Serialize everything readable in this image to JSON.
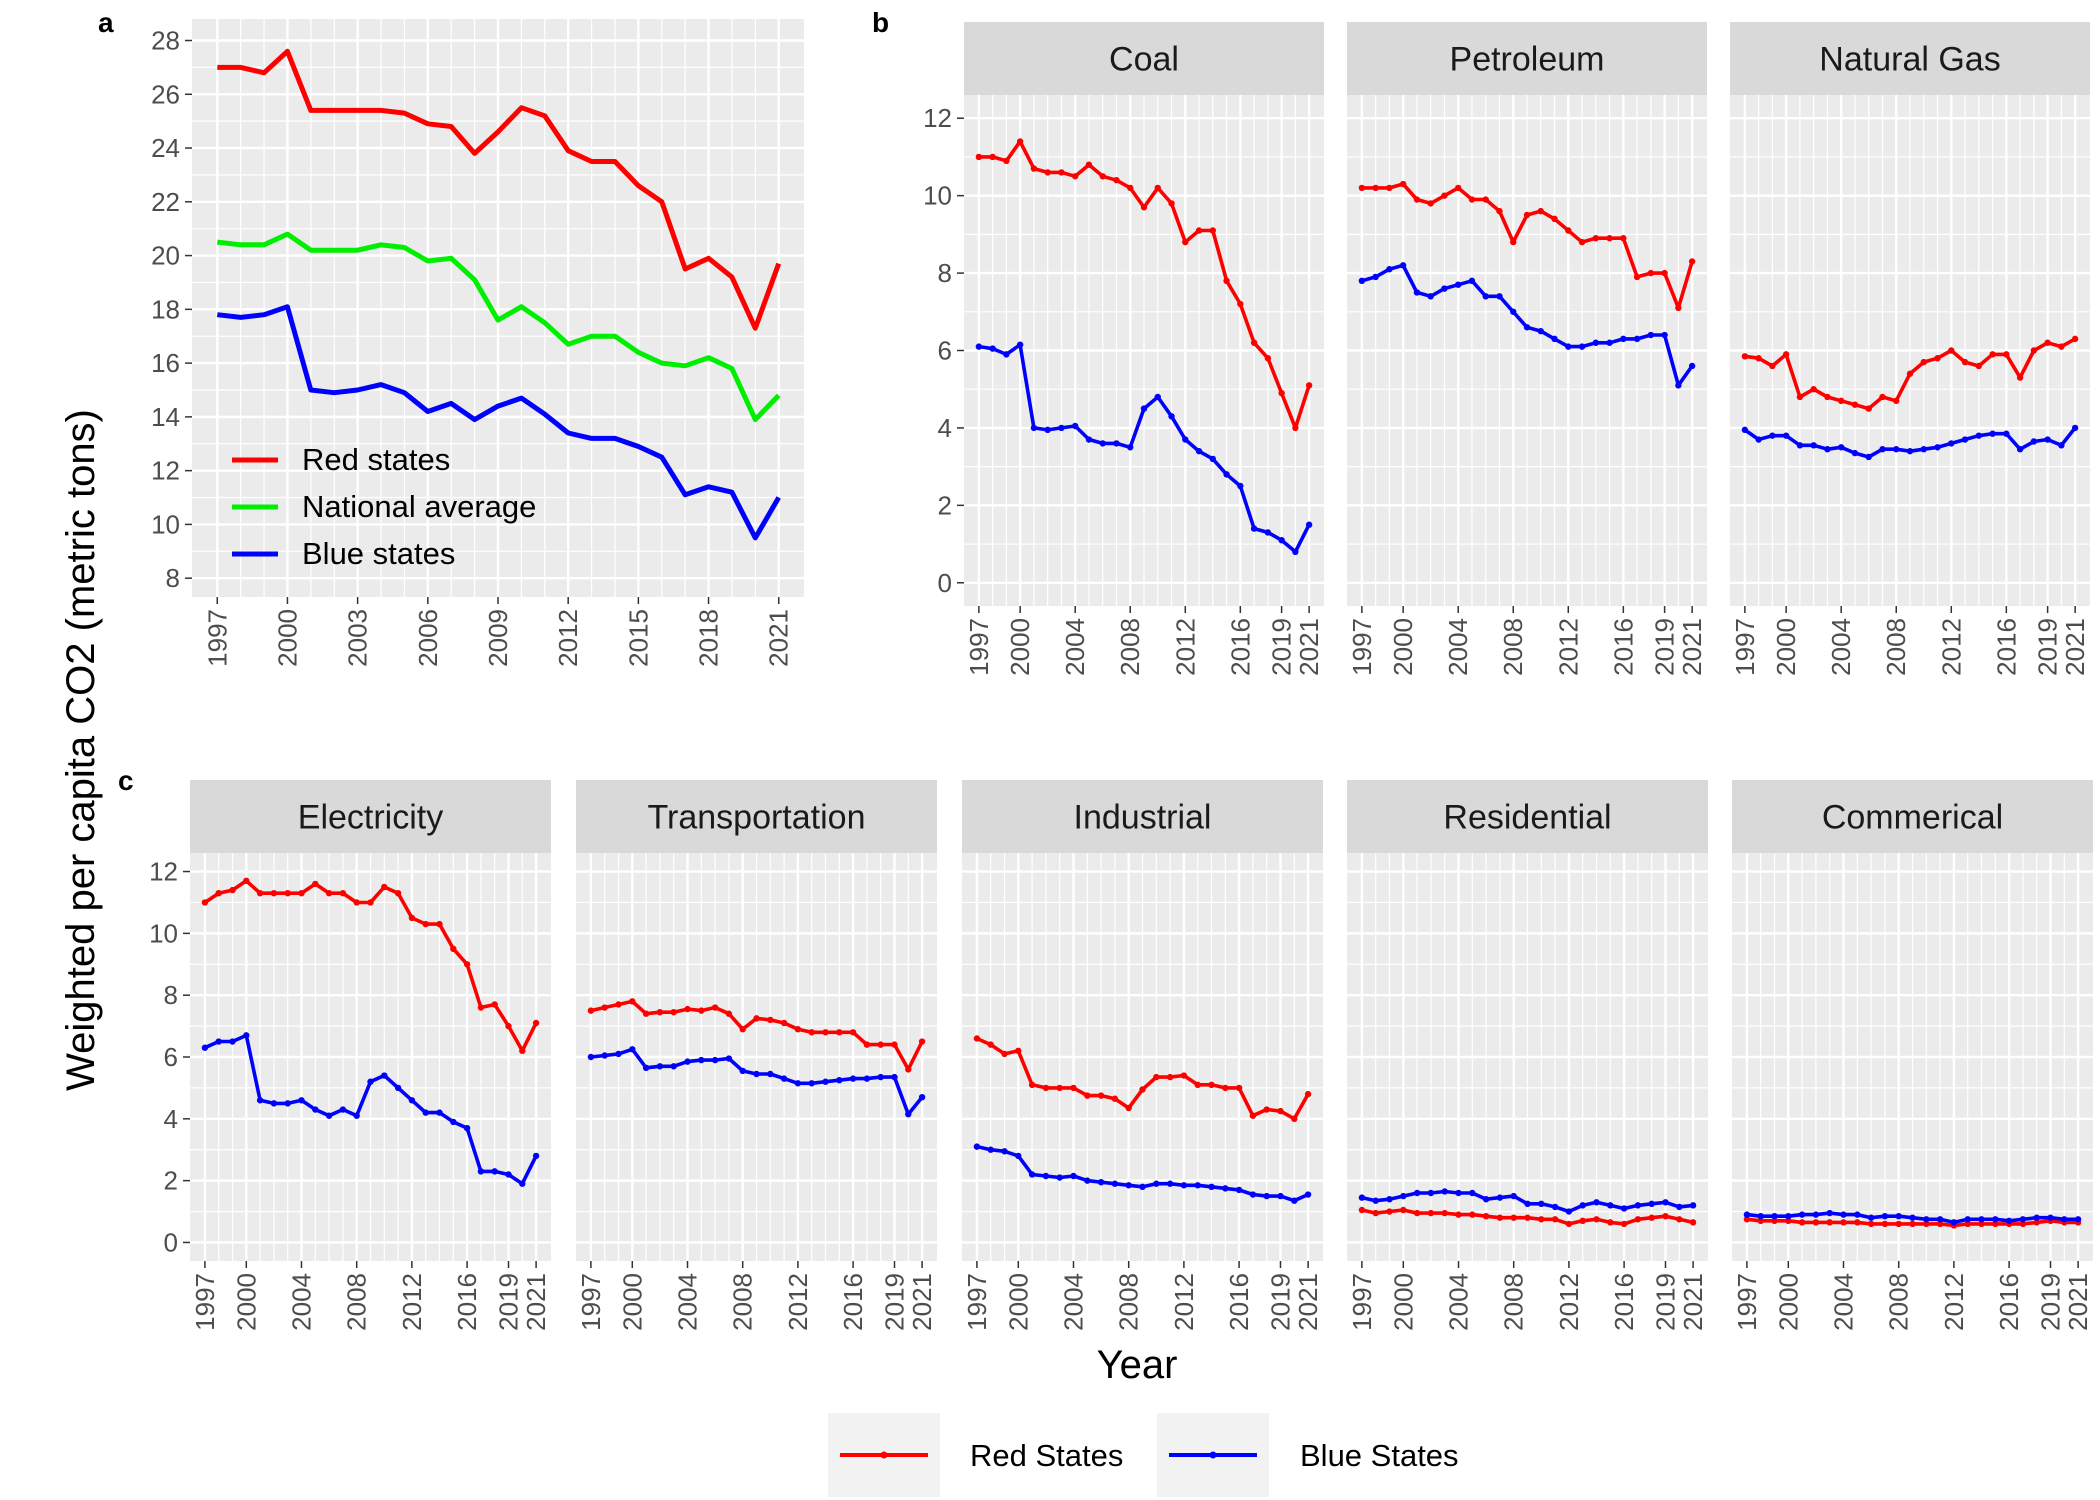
{
  "axis_titles": {
    "y": "Weighted per capita CO2 (metric tons)",
    "x": "Year"
  },
  "panel_letters": {
    "a": "a",
    "b": "b",
    "c": "c"
  },
  "legend": {
    "panel_a": [
      {
        "label": "Red states",
        "color": "#ff0000"
      },
      {
        "label": "National average",
        "color": "#00ee00"
      },
      {
        "label": "Blue states",
        "color": "#0000ff"
      }
    ],
    "bottom": [
      {
        "label": "Red States",
        "color": "#ff0000"
      },
      {
        "label": "Blue States",
        "color": "#0000ff"
      }
    ]
  },
  "chart_data": [
    {
      "panel": "a",
      "type": "line",
      "x": [
        1997,
        1998,
        1999,
        2000,
        2001,
        2002,
        2003,
        2004,
        2005,
        2006,
        2007,
        2008,
        2009,
        2010,
        2011,
        2012,
        2013,
        2014,
        2015,
        2016,
        2017,
        2018,
        2019,
        2020,
        2021
      ],
      "x_ticks": [
        1997,
        2000,
        2003,
        2006,
        2009,
        2012,
        2015,
        2018,
        2021
      ],
      "y_ticks": [
        8,
        10,
        12,
        14,
        16,
        18,
        20,
        22,
        24,
        26,
        28
      ],
      "ylim": [
        7.3,
        28.8
      ],
      "grid": true,
      "legend_position": "bottom-left",
      "series": [
        {
          "name": "Red states",
          "color": "#ff0000",
          "values": [
            27.0,
            27.0,
            26.8,
            27.6,
            25.4,
            25.4,
            25.4,
            25.4,
            25.3,
            24.9,
            24.8,
            23.8,
            24.6,
            25.5,
            25.2,
            23.9,
            23.5,
            23.5,
            22.6,
            22.0,
            19.5,
            19.9,
            19.2,
            17.3,
            19.7
          ]
        },
        {
          "name": "National average",
          "color": "#00ee00",
          "values": [
            20.5,
            20.4,
            20.4,
            20.8,
            20.2,
            20.2,
            20.2,
            20.4,
            20.3,
            19.8,
            19.9,
            19.1,
            17.6,
            18.1,
            17.5,
            16.7,
            17.0,
            17.0,
            16.4,
            16.0,
            15.9,
            16.2,
            15.8,
            13.9,
            14.8
          ]
        },
        {
          "name": "Blue states",
          "color": "#0000ff",
          "values": [
            17.8,
            17.7,
            17.8,
            18.1,
            15.0,
            14.9,
            15.0,
            15.2,
            14.9,
            14.2,
            14.5,
            13.9,
            14.4,
            14.7,
            14.1,
            13.4,
            13.2,
            13.2,
            12.9,
            12.5,
            11.1,
            11.4,
            11.2,
            9.5,
            11.0
          ]
        }
      ]
    },
    {
      "panel": "b",
      "type": "line",
      "facets": [
        "Coal",
        "Petroleum",
        "Natural Gas"
      ],
      "x": [
        1997,
        1998,
        1999,
        2000,
        2001,
        2002,
        2003,
        2004,
        2005,
        2006,
        2007,
        2008,
        2009,
        2010,
        2011,
        2012,
        2013,
        2014,
        2015,
        2016,
        2017,
        2018,
        2019,
        2020,
        2021
      ],
      "x_ticks": [
        1997,
        2000,
        2004,
        2008,
        2012,
        2016,
        2019,
        2021
      ],
      "y_ticks": [
        0,
        2,
        4,
        6,
        8,
        10,
        12
      ],
      "ylim": [
        -0.6,
        12.6
      ],
      "grid": true,
      "series": [
        {
          "facet": "Coal",
          "name": "Red States",
          "color": "#ff0000",
          "values": [
            11.0,
            11.0,
            10.9,
            11.4,
            10.7,
            10.6,
            10.6,
            10.5,
            10.8,
            10.5,
            10.4,
            10.2,
            9.7,
            10.2,
            9.8,
            8.8,
            9.1,
            9.1,
            7.8,
            7.2,
            6.2,
            5.8,
            4.9,
            4.0,
            5.1
          ]
        },
        {
          "facet": "Coal",
          "name": "Blue States",
          "color": "#0000ff",
          "values": [
            6.1,
            6.05,
            5.9,
            6.15,
            4.0,
            3.95,
            4.0,
            4.05,
            3.7,
            3.6,
            3.6,
            3.5,
            4.5,
            4.8,
            4.3,
            3.7,
            3.4,
            3.2,
            2.8,
            2.5,
            1.4,
            1.3,
            1.1,
            0.8,
            1.5
          ]
        },
        {
          "facet": "Petroleum",
          "name": "Red States",
          "color": "#ff0000",
          "values": [
            10.2,
            10.2,
            10.2,
            10.3,
            9.9,
            9.8,
            10.0,
            10.2,
            9.9,
            9.9,
            9.6,
            8.8,
            9.5,
            9.6,
            9.4,
            9.1,
            8.8,
            8.9,
            8.9,
            8.9,
            7.9,
            8.0,
            8.0,
            7.1,
            8.3
          ]
        },
        {
          "facet": "Petroleum",
          "name": "Blue States",
          "color": "#0000ff",
          "values": [
            7.8,
            7.9,
            8.1,
            8.2,
            7.5,
            7.4,
            7.6,
            7.7,
            7.8,
            7.4,
            7.4,
            7.0,
            6.6,
            6.5,
            6.3,
            6.1,
            6.1,
            6.2,
            6.2,
            6.3,
            6.3,
            6.4,
            6.4,
            5.1,
            5.6
          ]
        },
        {
          "facet": "Natural Gas",
          "name": "Red States",
          "color": "#ff0000",
          "values": [
            5.85,
            5.8,
            5.6,
            5.9,
            4.8,
            5.0,
            4.8,
            4.7,
            4.6,
            4.5,
            4.8,
            4.7,
            5.4,
            5.7,
            5.8,
            6.0,
            5.7,
            5.6,
            5.9,
            5.9,
            5.3,
            6.0,
            6.2,
            6.1,
            6.3
          ]
        },
        {
          "facet": "Natural Gas",
          "name": "Blue States",
          "color": "#0000ff",
          "values": [
            3.95,
            3.7,
            3.8,
            3.8,
            3.55,
            3.55,
            3.45,
            3.5,
            3.35,
            3.25,
            3.45,
            3.45,
            3.4,
            3.45,
            3.5,
            3.6,
            3.7,
            3.8,
            3.85,
            3.85,
            3.45,
            3.65,
            3.7,
            3.55,
            4.0
          ]
        }
      ]
    },
    {
      "panel": "c",
      "type": "line",
      "facets": [
        "Electricity",
        "Transportation",
        "Industrial",
        "Residential",
        "Commerical"
      ],
      "x": [
        1997,
        1998,
        1999,
        2000,
        2001,
        2002,
        2003,
        2004,
        2005,
        2006,
        2007,
        2008,
        2009,
        2010,
        2011,
        2012,
        2013,
        2014,
        2015,
        2016,
        2017,
        2018,
        2019,
        2020,
        2021
      ],
      "x_ticks": [
        1997,
        2000,
        2004,
        2008,
        2012,
        2016,
        2019,
        2021
      ],
      "y_ticks": [
        0,
        2,
        4,
        6,
        8,
        10,
        12
      ],
      "ylim": [
        -0.6,
        12.6
      ],
      "grid": true,
      "series": [
        {
          "facet": "Electricity",
          "name": "Red States",
          "color": "#ff0000",
          "values": [
            11.0,
            11.3,
            11.4,
            11.7,
            11.3,
            11.3,
            11.3,
            11.3,
            11.6,
            11.3,
            11.3,
            11.0,
            11.0,
            11.5,
            11.3,
            10.5,
            10.3,
            10.3,
            9.5,
            9.0,
            7.6,
            7.7,
            7.0,
            6.2,
            7.1
          ]
        },
        {
          "facet": "Electricity",
          "name": "Blue States",
          "color": "#0000ff",
          "values": [
            6.3,
            6.5,
            6.5,
            6.7,
            4.6,
            4.5,
            4.5,
            4.6,
            4.3,
            4.1,
            4.3,
            4.1,
            5.2,
            5.4,
            5.0,
            4.6,
            4.2,
            4.2,
            3.9,
            3.7,
            2.3,
            2.3,
            2.2,
            1.9,
            2.8
          ]
        },
        {
          "facet": "Transportation",
          "name": "Red States",
          "color": "#ff0000",
          "values": [
            7.5,
            7.6,
            7.7,
            7.8,
            7.4,
            7.45,
            7.45,
            7.55,
            7.5,
            7.6,
            7.4,
            6.9,
            7.25,
            7.2,
            7.1,
            6.9,
            6.8,
            6.8,
            6.8,
            6.8,
            6.4,
            6.4,
            6.4,
            5.6,
            6.5
          ]
        },
        {
          "facet": "Transportation",
          "name": "Blue States",
          "color": "#0000ff",
          "values": [
            6.0,
            6.05,
            6.1,
            6.25,
            5.65,
            5.7,
            5.7,
            5.85,
            5.9,
            5.9,
            5.95,
            5.55,
            5.45,
            5.45,
            5.3,
            5.15,
            5.15,
            5.2,
            5.25,
            5.3,
            5.3,
            5.35,
            5.35,
            4.15,
            4.7
          ]
        },
        {
          "facet": "Industrial",
          "name": "Red States",
          "color": "#ff0000",
          "values": [
            6.6,
            6.4,
            6.1,
            6.2,
            5.1,
            5.0,
            5.0,
            5.0,
            4.75,
            4.75,
            4.65,
            4.35,
            4.95,
            5.35,
            5.35,
            5.4,
            5.1,
            5.1,
            5.0,
            5.0,
            4.1,
            4.3,
            4.25,
            4.0,
            4.8
          ]
        },
        {
          "facet": "Industrial",
          "name": "Blue States",
          "color": "#0000ff",
          "values": [
            3.1,
            3.0,
            2.95,
            2.8,
            2.2,
            2.15,
            2.1,
            2.15,
            2.0,
            1.95,
            1.9,
            1.85,
            1.8,
            1.9,
            1.9,
            1.85,
            1.85,
            1.8,
            1.75,
            1.7,
            1.55,
            1.5,
            1.5,
            1.35,
            1.55
          ]
        },
        {
          "facet": "Residential",
          "name": "Red States",
          "color": "#ff0000",
          "values": [
            1.05,
            0.95,
            1.0,
            1.05,
            0.95,
            0.95,
            0.95,
            0.9,
            0.9,
            0.85,
            0.8,
            0.8,
            0.8,
            0.75,
            0.75,
            0.6,
            0.7,
            0.75,
            0.65,
            0.6,
            0.75,
            0.8,
            0.85,
            0.75,
            0.65
          ]
        },
        {
          "facet": "Residential",
          "name": "Blue States",
          "color": "#0000ff",
          "values": [
            1.45,
            1.35,
            1.4,
            1.5,
            1.6,
            1.6,
            1.65,
            1.6,
            1.6,
            1.4,
            1.45,
            1.5,
            1.25,
            1.25,
            1.15,
            1.0,
            1.2,
            1.3,
            1.2,
            1.1,
            1.2,
            1.25,
            1.3,
            1.15,
            1.2
          ]
        },
        {
          "facet": "Commerical",
          "name": "Red States",
          "color": "#ff0000",
          "values": [
            0.75,
            0.7,
            0.7,
            0.7,
            0.65,
            0.65,
            0.65,
            0.65,
            0.65,
            0.6,
            0.6,
            0.6,
            0.6,
            0.6,
            0.6,
            0.55,
            0.6,
            0.6,
            0.6,
            0.6,
            0.6,
            0.65,
            0.7,
            0.65,
            0.65
          ]
        },
        {
          "facet": "Commerical",
          "name": "Blue States",
          "color": "#0000ff",
          "values": [
            0.9,
            0.85,
            0.85,
            0.85,
            0.9,
            0.9,
            0.95,
            0.9,
            0.9,
            0.8,
            0.85,
            0.85,
            0.8,
            0.75,
            0.75,
            0.65,
            0.75,
            0.75,
            0.75,
            0.7,
            0.75,
            0.8,
            0.8,
            0.75,
            0.75
          ]
        }
      ]
    }
  ]
}
